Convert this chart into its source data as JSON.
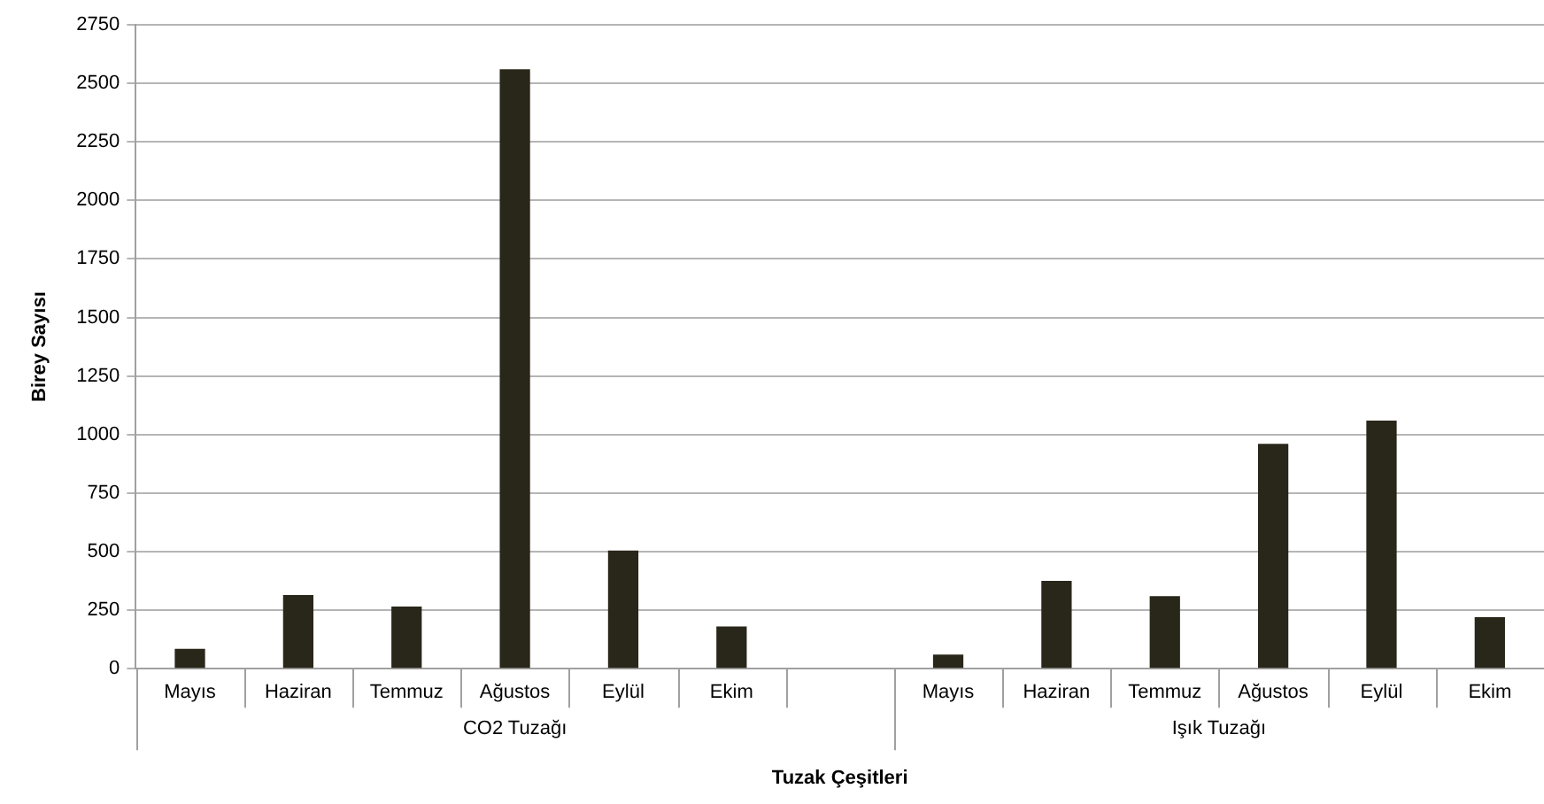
{
  "chart_data": {
    "type": "bar",
    "xlabel": "Tuzak Çeşitleri",
    "ylabel": "Birey Sayısı",
    "categories": [
      "Mayıs",
      "Haziran",
      "Temmuz",
      "Ağustos",
      "Eylül",
      "Ekim",
      null,
      "Mayıs",
      "Haziran",
      "Temmuz",
      "Ağustos",
      "Eylül",
      "Ekim"
    ],
    "values": [
      85,
      315,
      265,
      2560,
      505,
      180,
      null,
      60,
      375,
      310,
      960,
      1060,
      220
    ],
    "color": "#29261a",
    "annotations": [
      "CO2 Tuzağı",
      "Işık Tuzağı"
    ],
    "ylim": [
      0,
      2750
    ],
    "yticks": [
      0,
      250,
      500,
      750,
      1000,
      1250,
      1500,
      1750,
      2000,
      2250,
      2500,
      2750
    ],
    "grid": "y",
    "legend": false
  }
}
